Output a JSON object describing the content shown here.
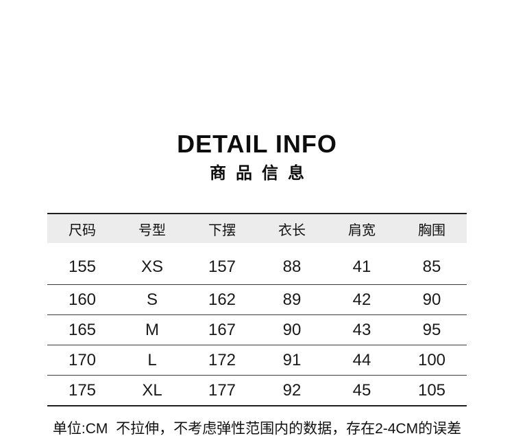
{
  "header": {
    "title": "DETAIL INFO",
    "subtitle": "商品信息"
  },
  "table": {
    "columns": [
      "尺码",
      "号型",
      "下摆",
      "衣长",
      "肩宽",
      "胸围"
    ],
    "rows": [
      [
        "155",
        "XS",
        "157",
        "88",
        "41",
        "85"
      ],
      [
        "160",
        "S",
        "162",
        "89",
        "42",
        "90"
      ],
      [
        "165",
        "M",
        "167",
        "90",
        "43",
        "95"
      ],
      [
        "170",
        "L",
        "172",
        "91",
        "44",
        "100"
      ],
      [
        "175",
        "XL",
        "177",
        "92",
        "45",
        "105"
      ]
    ]
  },
  "footnote": {
    "text": "单位:CM  不拉伸，不考虑弹性范围内的数据，存在2-4CM的误差"
  },
  "colors": {
    "background": "#ffffff",
    "text": "#1a1a1a",
    "header_row_bg": "#ececec",
    "border_heavy": "#1f1f1f",
    "border_light": "#3c3c3c"
  }
}
